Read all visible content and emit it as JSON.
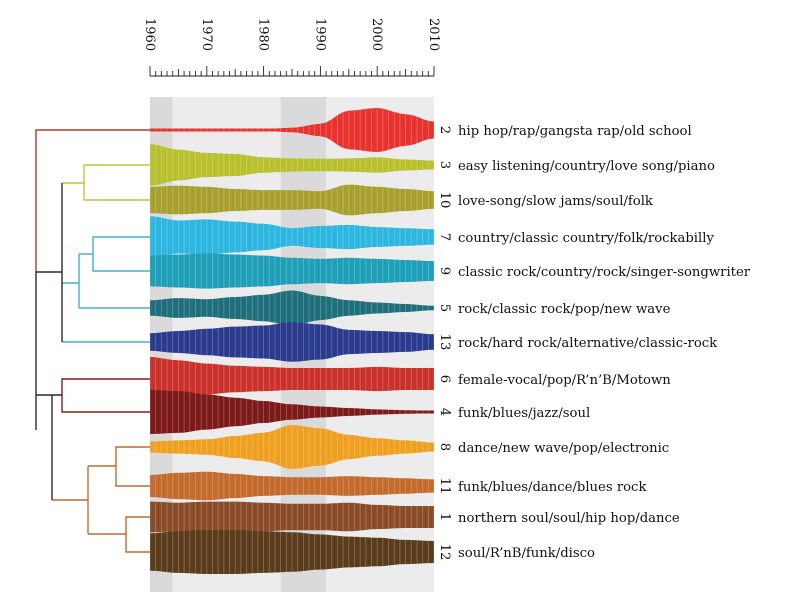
{
  "chart_data": {
    "type": "area",
    "title": "",
    "xlabel": "",
    "ylabel": "",
    "xlim": [
      1960,
      2010
    ],
    "x_ticks": [
      1960,
      1970,
      1980,
      1990,
      2000,
      2010
    ],
    "tick_labels": [
      "1960",
      "1970",
      "1980",
      "1990",
      "2000",
      "2010"
    ],
    "background_bands": [
      {
        "from": 1960,
        "to": 1964,
        "shade": "dark"
      },
      {
        "from": 1964,
        "to": 1983,
        "shade": "light"
      },
      {
        "from": 1983,
        "to": 1991,
        "shade": "dark"
      },
      {
        "from": 1991,
        "to": 2010,
        "shade": "light"
      }
    ],
    "dendrogram": true,
    "x": [
      1960,
      1965,
      1970,
      1975,
      1980,
      1985,
      1990,
      1995,
      2000,
      2005,
      2010
    ],
    "series": [
      {
        "name": "hip hop/rap/gangsta rap/old school",
        "number": "2",
        "color": "#e8322e",
        "values": [
          0.03,
          0.03,
          0.03,
          0.04,
          0.05,
          0.1,
          0.28,
          0.88,
          1.0,
          0.72,
          0.38
        ]
      },
      {
        "name": "easy listening/country/love song/piano",
        "number": "3",
        "color": "#b8c02e",
        "values": [
          0.95,
          0.7,
          0.55,
          0.5,
          0.35,
          0.3,
          0.28,
          0.3,
          0.35,
          0.25,
          0.2
        ]
      },
      {
        "name": "love-song/slow jams/soul/folk",
        "number": "10",
        "color": "#a8a02e",
        "values": [
          0.6,
          0.65,
          0.6,
          0.5,
          0.45,
          0.45,
          0.4,
          0.7,
          0.6,
          0.5,
          0.4
        ]
      },
      {
        "name": "country/classic country/folk/rockabilly",
        "number": "7",
        "color": "#2cb6e0",
        "values": [
          0.95,
          0.75,
          0.8,
          0.7,
          0.6,
          0.4,
          0.5,
          0.55,
          0.45,
          0.4,
          0.35
        ]
      },
      {
        "name": "classic rock/country/rock/singer-songwriter",
        "number": "9",
        "color": "#1e9fb7",
        "values": [
          0.7,
          0.75,
          0.8,
          0.75,
          0.7,
          0.6,
          0.55,
          0.6,
          0.55,
          0.5,
          0.45
        ]
      },
      {
        "name": "rock/classic rock/pop/new wave",
        "number": "5",
        "color": "#1e6e7c",
        "values": [
          0.35,
          0.45,
          0.4,
          0.5,
          0.6,
          0.8,
          0.55,
          0.35,
          0.25,
          0.18,
          0.1
        ]
      },
      {
        "name": "rock/hard rock/alternative/classic-rock",
        "number": "13",
        "color": "#2a3a8c",
        "values": [
          0.4,
          0.5,
          0.6,
          0.7,
          0.75,
          0.9,
          0.8,
          0.55,
          0.5,
          0.45,
          0.35
        ]
      },
      {
        "name": "female-vocal/pop/R’n’B/Motown",
        "number": "6",
        "color": "#c9312a",
        "values": [
          1.0,
          0.85,
          0.7,
          0.6,
          0.55,
          0.5,
          0.5,
          0.5,
          0.55,
          0.5,
          0.5
        ]
      },
      {
        "name": "funk/blues/jazz/soul",
        "number": "4",
        "color": "#7b1a18",
        "values": [
          1.0,
          0.95,
          0.8,
          0.65,
          0.5,
          0.35,
          0.25,
          0.18,
          0.12,
          0.08,
          0.05
        ]
      },
      {
        "name": "dance/new wave/pop/electronic",
        "number": "8",
        "color": "#f0a020",
        "values": [
          0.25,
          0.3,
          0.35,
          0.5,
          0.65,
          1.0,
          0.85,
          0.55,
          0.4,
          0.3,
          0.2
        ]
      },
      {
        "name": "funk/blues/dance/blues rock",
        "number": "11",
        "color": "#c36a2c",
        "values": [
          0.5,
          0.6,
          0.65,
          0.55,
          0.45,
          0.4,
          0.4,
          0.45,
          0.4,
          0.35,
          0.3
        ]
      },
      {
        "name": "northern soul/soul/hip hop/dance",
        "number": "1",
        "color": "#8a4c28",
        "values": [
          0.7,
          0.65,
          0.7,
          0.7,
          0.65,
          0.6,
          0.6,
          0.65,
          0.55,
          0.5,
          0.5
        ]
      },
      {
        "name": "soul/R’nB/funk/disco",
        "number": "12",
        "color": "#5a3c1c",
        "values": [
          0.85,
          0.95,
          1.0,
          1.0,
          0.95,
          0.9,
          0.8,
          0.7,
          0.65,
          0.55,
          0.5
        ]
      }
    ]
  }
}
